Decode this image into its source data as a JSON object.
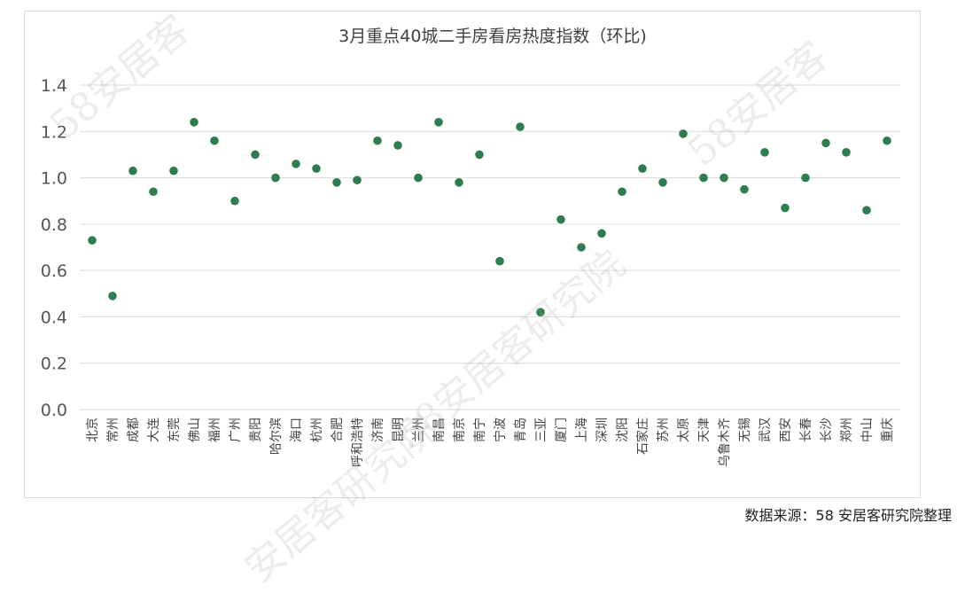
{
  "chart_data": {
    "type": "scatter",
    "title": "3月重点40城二手房看房热度指数（环比)",
    "xlabel": "",
    "ylabel": "",
    "ylim": [
      0,
      1.4
    ],
    "yticks": [
      "0.0",
      "0.2",
      "0.4",
      "0.6",
      "0.8",
      "1.0",
      "1.2",
      "1.4"
    ],
    "grid": true,
    "legend": "none",
    "marker_color": "#2e7d4f",
    "categories": [
      "北京",
      "常州",
      "成都",
      "大连",
      "东莞",
      "佛山",
      "福州",
      "广州",
      "贵阳",
      "哈尔滨",
      "海口",
      "杭州",
      "合肥",
      "呼和浩特",
      "济南",
      "昆明",
      "兰州",
      "南昌",
      "南京",
      "南宁",
      "宁波",
      "青岛",
      "三亚",
      "厦门",
      "上海",
      "深圳",
      "沈阳",
      "石家庄",
      "苏州",
      "太原",
      "天津",
      "乌鲁木齐",
      "无锡",
      "武汉",
      "西安",
      "长春",
      "长沙",
      "郑州",
      "中山",
      "重庆"
    ],
    "values": [
      0.73,
      0.49,
      1.03,
      0.94,
      1.03,
      1.24,
      1.16,
      0.9,
      1.1,
      1.0,
      1.06,
      1.04,
      0.98,
      0.99,
      1.16,
      1.14,
      1.0,
      1.24,
      0.98,
      1.1,
      0.64,
      1.22,
      0.42,
      0.82,
      0.7,
      0.76,
      0.94,
      1.04,
      0.98,
      1.19,
      1.0,
      1.0,
      0.95,
      1.11,
      0.87,
      1.0,
      1.15,
      1.11,
      0.86,
      1.16
    ]
  },
  "source": "数据来源：58 安居客研究院整理",
  "watermarks": [
    "58安居客",
    "58安居客研究院",
    "58安居客",
    "安居客研究院"
  ]
}
